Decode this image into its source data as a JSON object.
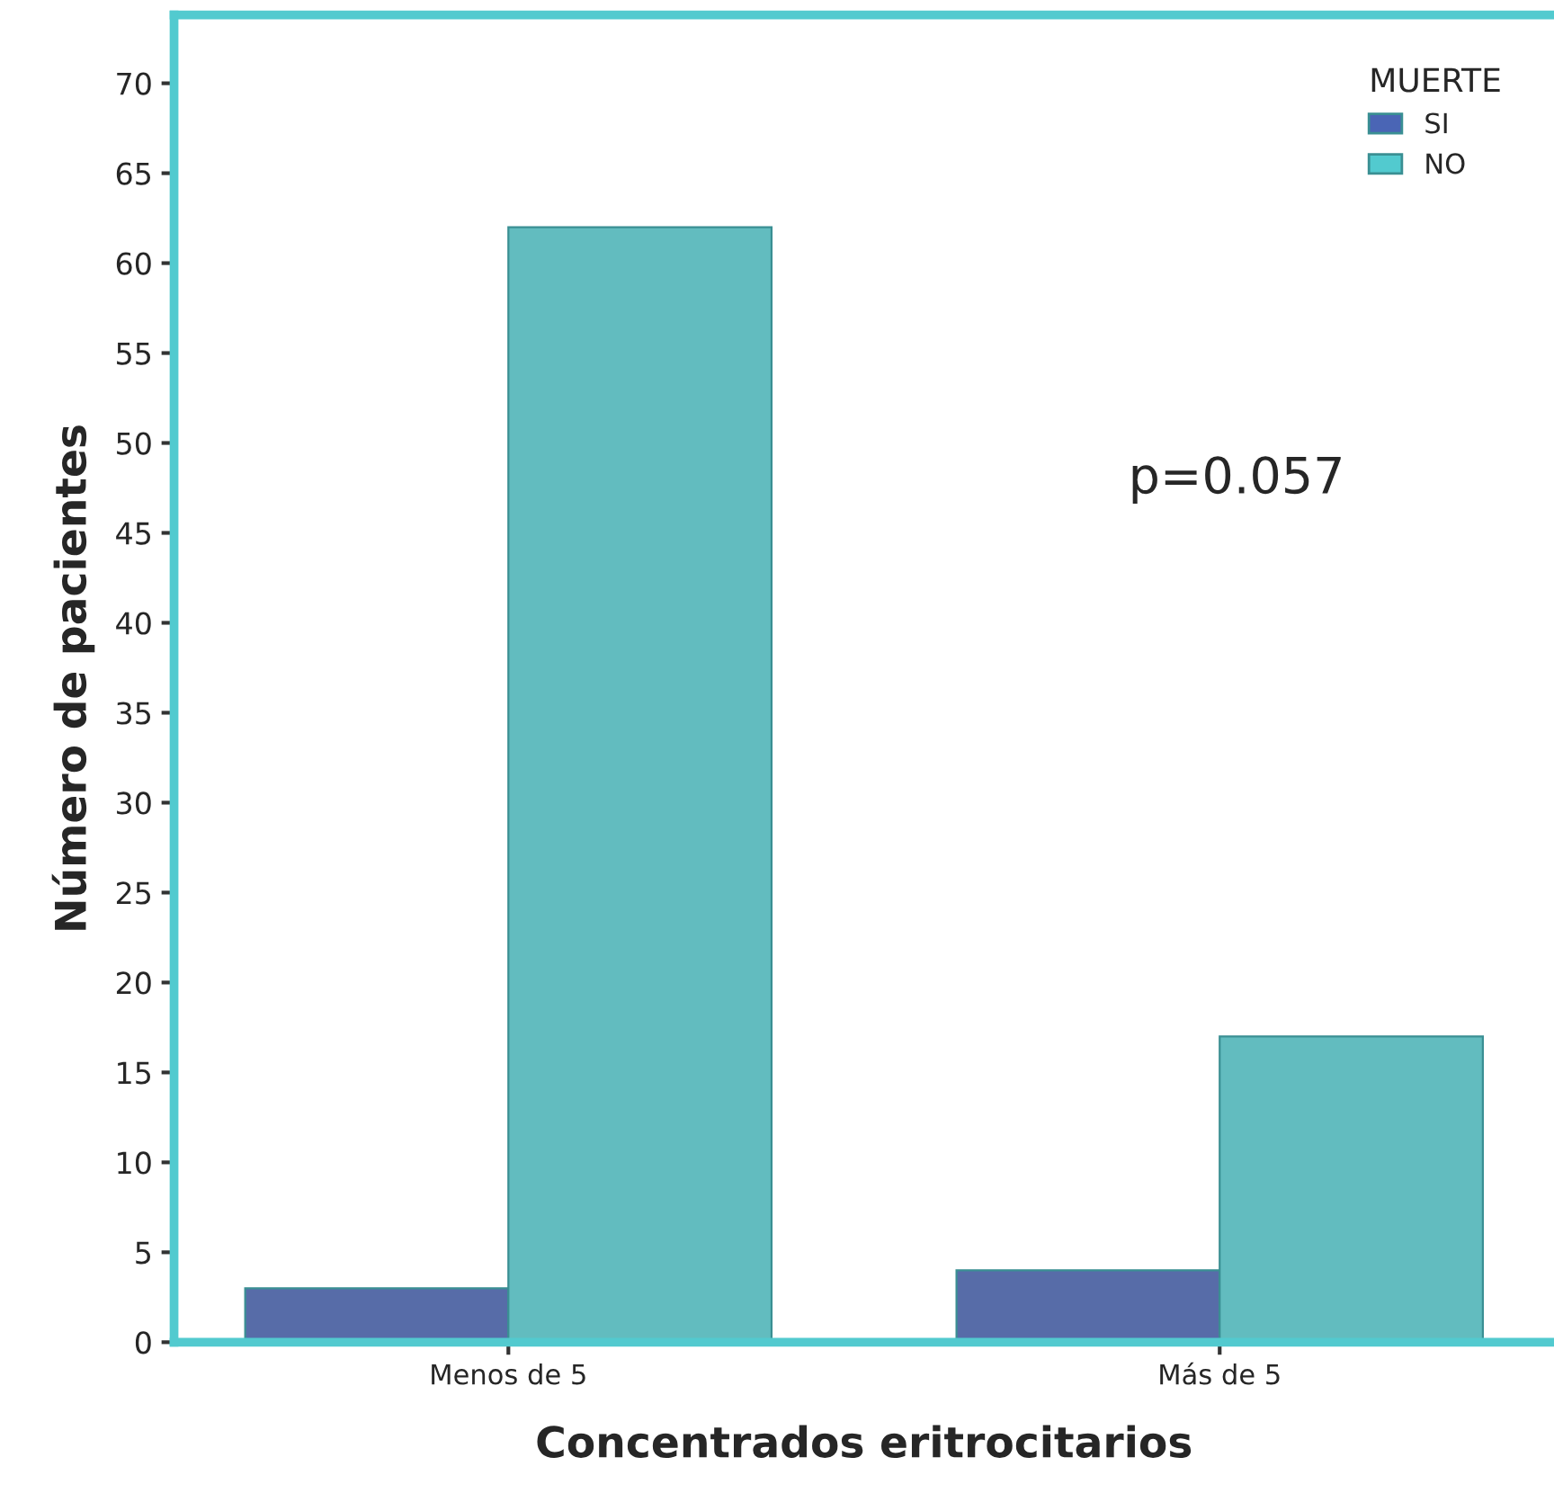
{
  "chart_data": {
    "type": "bar",
    "xlabel": "Concentrados eritrocitarios",
    "ylabel": "Número de pacientes",
    "legend_title": "MUERTE",
    "categories": [
      "Menos de 5",
      "Más de 5"
    ],
    "series": [
      {
        "name": "SI",
        "color": "#4a65b5",
        "values": [
          3,
          4
        ]
      },
      {
        "name": "NO",
        "color": "#52cacf",
        "values": [
          62,
          17
        ]
      }
    ],
    "ylim": [
      0,
      73.8
    ],
    "yticks": [
      0,
      5,
      10,
      15,
      20,
      25,
      30,
      35,
      40,
      45,
      50,
      55,
      60,
      65,
      70
    ],
    "annotations": [
      "p=0.057"
    ],
    "legend": "top right",
    "grid": false
  }
}
